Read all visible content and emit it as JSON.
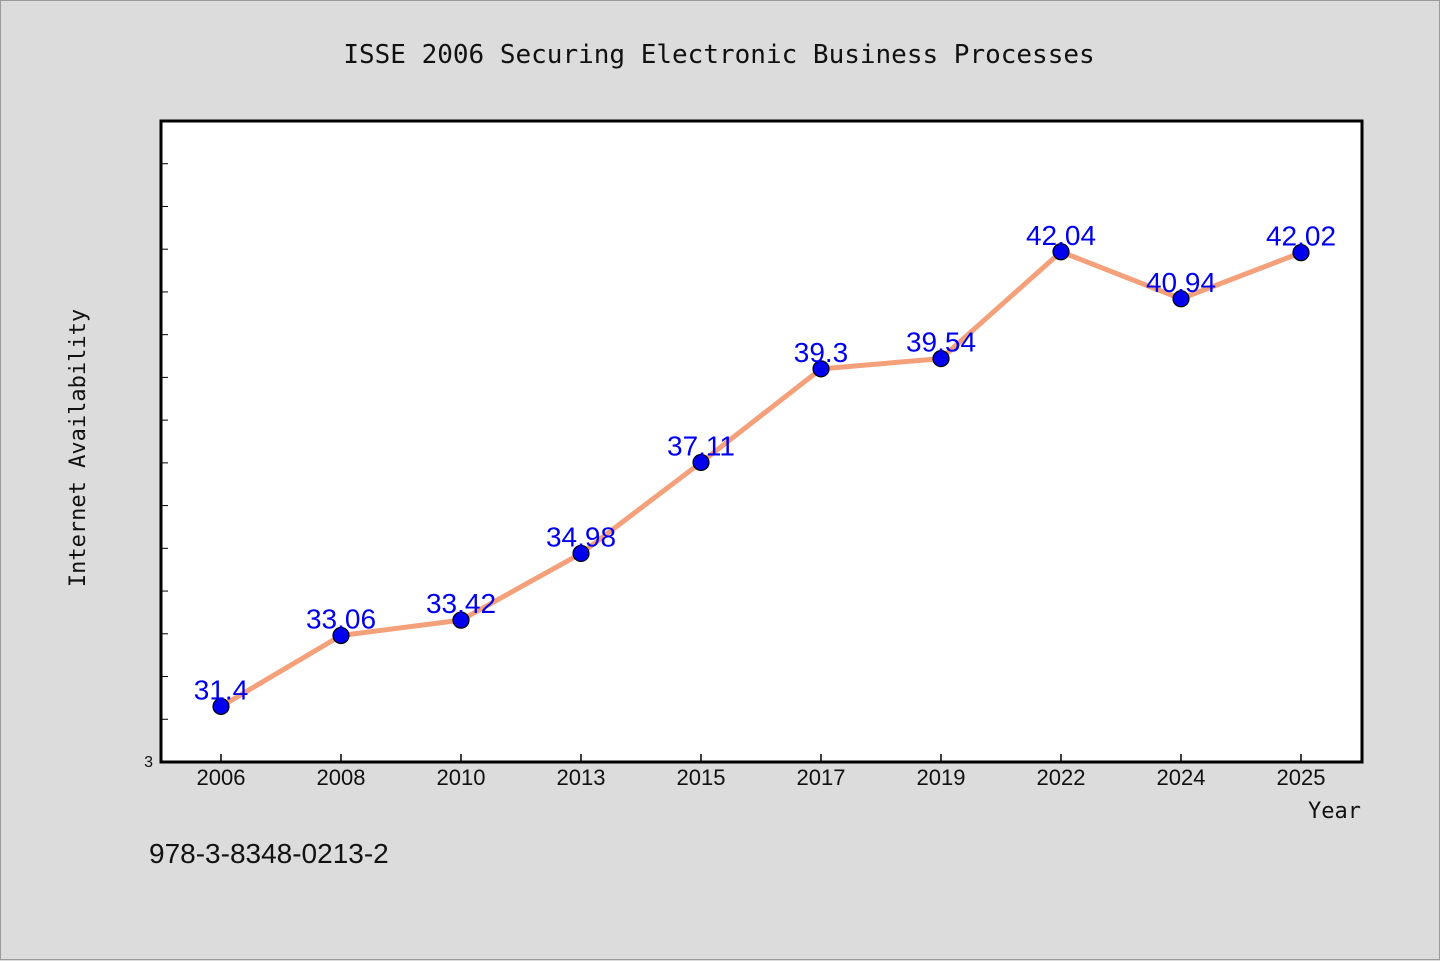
{
  "chart_data": {
    "type": "line",
    "title": "ISSE 2006 Securing Electronic Business Processes",
    "xlabel": "Year",
    "ylabel": "Internet Availability",
    "categories": [
      "2006",
      "2008",
      "2010",
      "2013",
      "2015",
      "2017",
      "2019",
      "2022",
      "2024",
      "2025"
    ],
    "series": [
      {
        "values": [
          31.4,
          33.06,
          33.42,
          34.98,
          37.11,
          39.3,
          39.54,
          42.04,
          40.94,
          42.02
        ]
      }
    ],
    "data_labels": [
      "31.4",
      "33.06",
      "33.42",
      "34.98",
      "37.11",
      "39.3",
      "39.54",
      "42.04",
      "40.94",
      "42.02"
    ],
    "y_tick_labels": [
      "3"
    ],
    "ylim": [
      30.1,
      45.1
    ],
    "grid": false,
    "legend": "none",
    "colors": {
      "line": "#f4a07a",
      "marker": "#0000ee",
      "data_label": "#0000ee",
      "background": "#dcdcdc",
      "plot_background": "#ffffff"
    }
  },
  "footer": {
    "isbn": "978-3-8348-0213-2"
  }
}
